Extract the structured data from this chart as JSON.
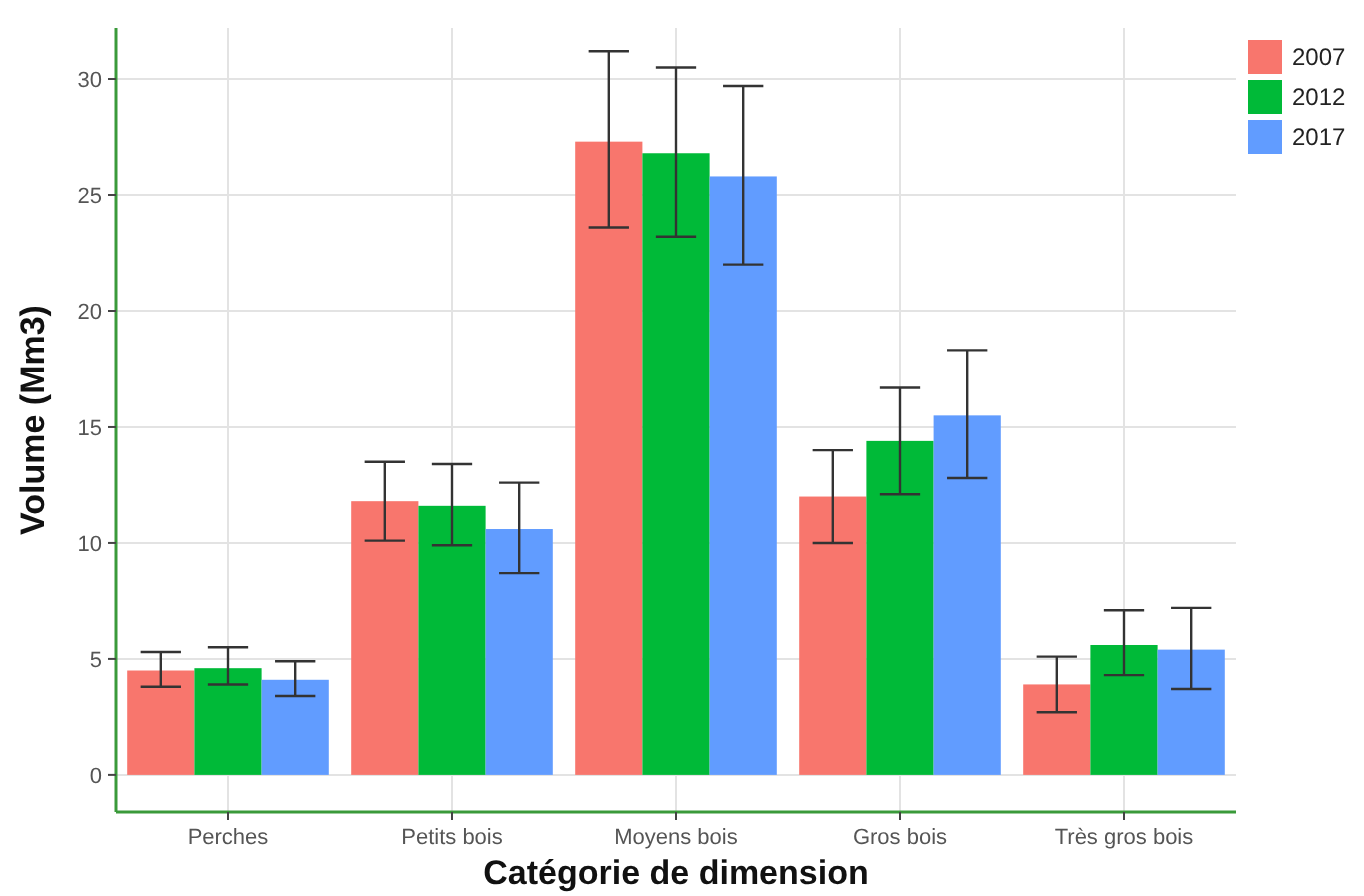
{
  "chart_data": {
    "type": "bar",
    "xlabel": "Catégorie de dimension",
    "ylabel": "Volume (Mm3)",
    "categories": [
      "Perches",
      "Petits bois",
      "Moyens bois",
      "Gros bois",
      "Très gros bois"
    ],
    "series": [
      {
        "name": "2007",
        "color": "#f8766d",
        "values": [
          4.5,
          11.8,
          27.3,
          12.0,
          3.9
        ],
        "errors": [
          [
            3.8,
            5.3
          ],
          [
            10.1,
            13.5
          ],
          [
            23.6,
            31.2
          ],
          [
            10.0,
            14.0
          ],
          [
            2.7,
            5.1
          ]
        ]
      },
      {
        "name": "2012",
        "color": "#00ba38",
        "values": [
          4.6,
          11.6,
          26.8,
          14.4,
          5.6
        ],
        "errors": [
          [
            3.9,
            5.5
          ],
          [
            9.9,
            13.4
          ],
          [
            23.2,
            30.5
          ],
          [
            12.1,
            16.7
          ],
          [
            4.3,
            7.1
          ]
        ]
      },
      {
        "name": "2017",
        "color": "#619cff",
        "values": [
          4.1,
          10.6,
          25.8,
          15.5,
          5.4
        ],
        "errors": [
          [
            3.4,
            4.9
          ],
          [
            8.7,
            12.6
          ],
          [
            22.0,
            29.7
          ],
          [
            12.8,
            18.3
          ],
          [
            3.7,
            7.2
          ]
        ]
      }
    ],
    "ylim": [
      -1.6,
      32.2
    ],
    "yticks": [
      0,
      5,
      10,
      15,
      20,
      25,
      30
    ],
    "grid": true,
    "legend": "top right"
  }
}
